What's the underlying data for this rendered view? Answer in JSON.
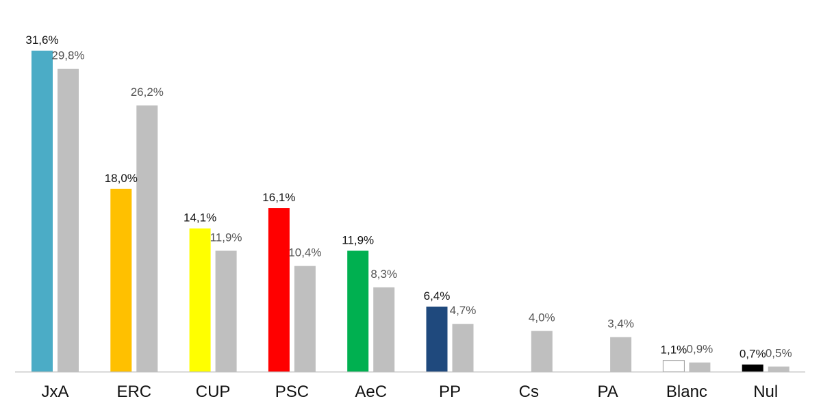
{
  "chart_data": {
    "type": "bar",
    "categories": [
      "JxA",
      "ERC",
      "CUP",
      "PSC",
      "AeC",
      "PP",
      "Cs",
      "PA",
      "Blanc",
      "Nul"
    ],
    "series": [
      {
        "values": [
          31.6,
          18.0,
          14.1,
          16.1,
          11.9,
          6.4,
          null,
          null,
          1.1,
          0.7
        ],
        "labels": [
          "31,6%",
          "18,0%",
          "14,1%",
          "16,1%",
          "11,9%",
          "6,4%",
          "",
          "",
          "1,1%",
          "0,7%"
        ],
        "colors": [
          "#4bacc6",
          "#ffc000",
          "#ffff00",
          "#ff0000",
          "#00b050",
          "#1f497d",
          "",
          "",
          "#ffffff",
          "#000000"
        ]
      },
      {
        "values": [
          29.8,
          26.2,
          11.9,
          10.4,
          8.3,
          4.7,
          4.0,
          3.4,
          0.9,
          0.5
        ],
        "labels": [
          "29,8%",
          "26,2%",
          "11,9%",
          "10,4%",
          "8,3%",
          "4,7%",
          "4,0%",
          "3,4%",
          "0,9%",
          "0,5%"
        ],
        "color": "#bfbfbf"
      }
    ],
    "ylim": [
      0,
      31.6
    ],
    "grid": false,
    "legend": "none",
    "title": "",
    "xlabel": "",
    "ylabel": ""
  }
}
